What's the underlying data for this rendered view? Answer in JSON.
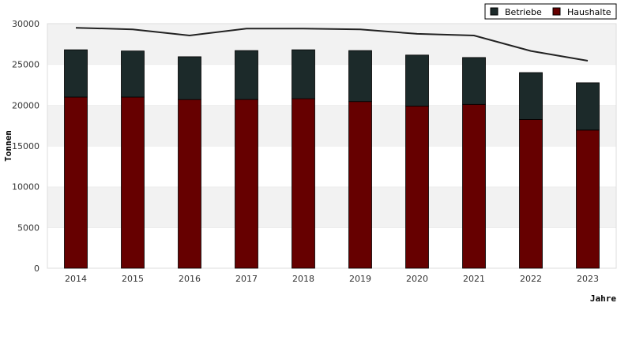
{
  "chart_data": {
    "type": "bar",
    "stacked": true,
    "categories": [
      "2014",
      "2015",
      "2016",
      "2017",
      "2018",
      "2019",
      "2020",
      "2021",
      "2022",
      "2023"
    ],
    "series": [
      {
        "name": "Haushalte",
        "color": "#660000",
        "values": [
          21000,
          21000,
          20700,
          20700,
          20800,
          20450,
          19900,
          20100,
          18250,
          16950
        ]
      },
      {
        "name": "Betriebe",
        "color": "#1c2a2a",
        "values": [
          5800,
          5650,
          5250,
          6000,
          6000,
          6250,
          6250,
          5750,
          5750,
          5800
        ]
      }
    ],
    "line": {
      "color": "#222222",
      "values": [
        29500,
        29300,
        28550,
        29400,
        29400,
        29300,
        28750,
        28550,
        26650,
        25450
      ]
    },
    "xlabel": "Jahre",
    "ylabel": "Tonnen",
    "ylim": [
      0,
      30000
    ],
    "yticks": [
      0,
      5000,
      10000,
      15000,
      20000,
      25000,
      30000
    ],
    "grid": "alternating horizontal bands",
    "legend": "top-right",
    "legend_order": [
      "Betriebe",
      "Haushalte"
    ]
  }
}
